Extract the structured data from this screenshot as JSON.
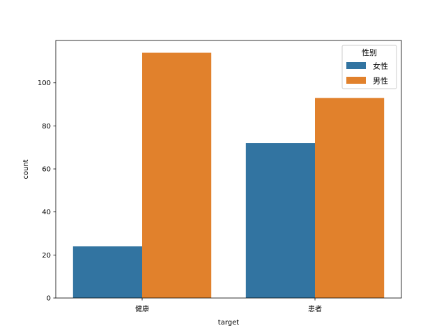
{
  "chart_data": {
    "type": "bar",
    "title": "",
    "xlabel": "target",
    "ylabel": "count",
    "categories": [
      "健康",
      "患者"
    ],
    "series": [
      {
        "name": "女性",
        "values": [
          24,
          72
        ],
        "color": "#3274a1"
      },
      {
        "name": "男性",
        "values": [
          114,
          93
        ],
        "color": "#e1812c"
      }
    ],
    "ylim": [
      0,
      119.7
    ],
    "yticks": [
      0,
      20,
      40,
      60,
      80,
      100
    ],
    "grid": false,
    "legend": {
      "title": "性别",
      "placement": "top-right"
    }
  }
}
